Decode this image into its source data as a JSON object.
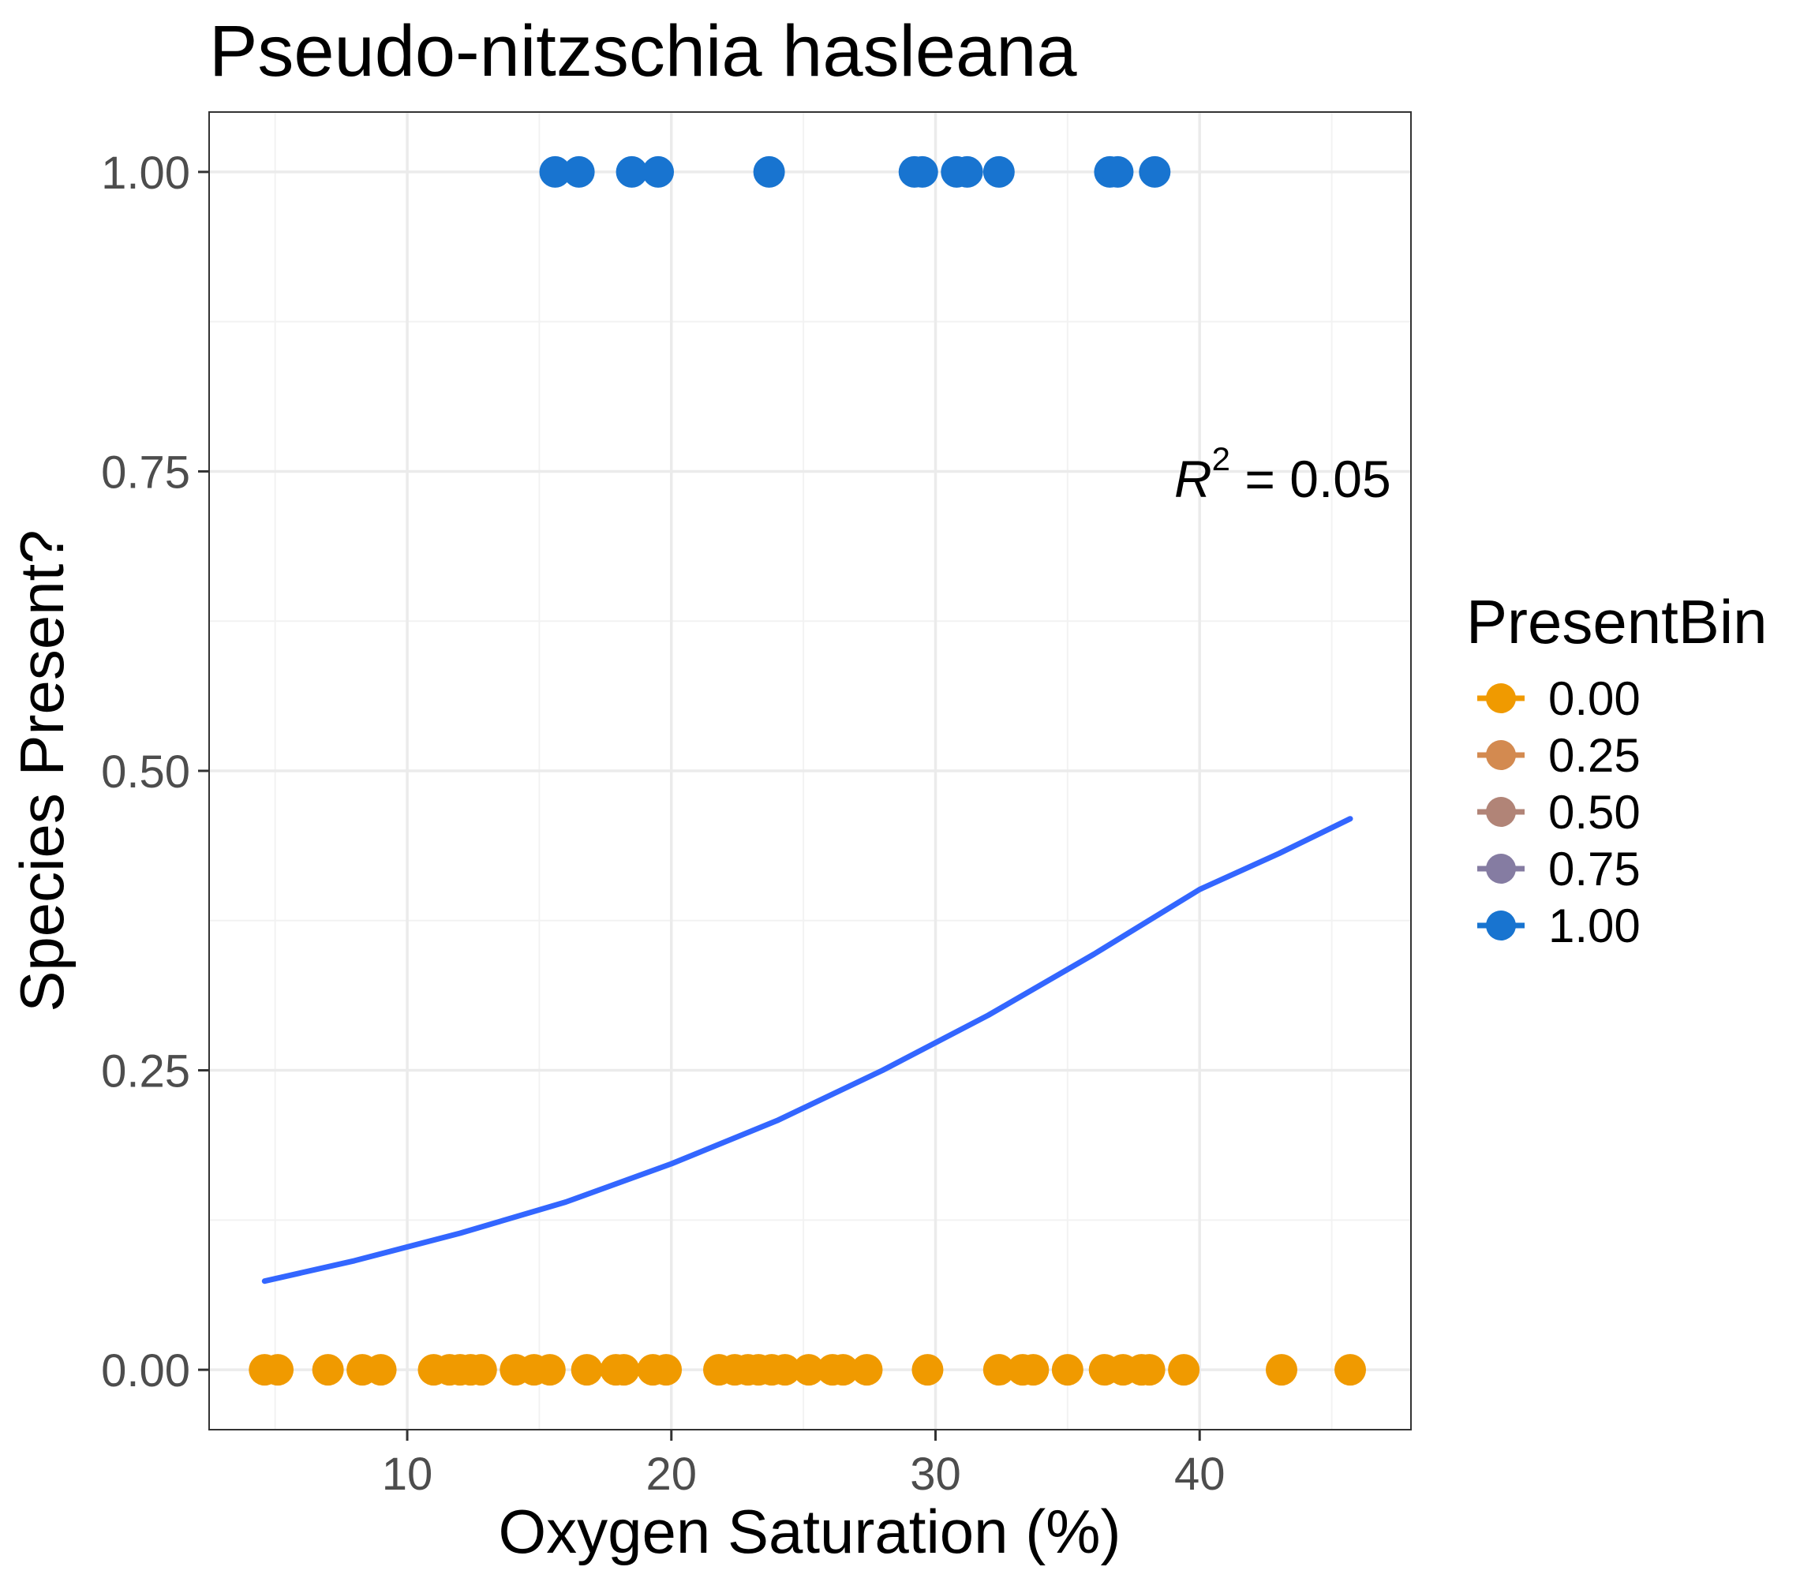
{
  "chart_data": {
    "type": "scatter",
    "title": "Pseudo-nitzschia hasleana",
    "xlabel": "Oxygen Saturation (%)",
    "ylabel": "Species Present?",
    "xlim": [
      2.5,
      48.0
    ],
    "ylim": [
      -0.05,
      1.05
    ],
    "x_ticks": [
      10,
      20,
      30,
      40
    ],
    "x_tick_labels": [
      "10",
      "20",
      "30",
      "40"
    ],
    "y_ticks": [
      0,
      0.25,
      0.5,
      0.75,
      1.0
    ],
    "y_tick_labels": [
      "0.00",
      "0.25",
      "0.50",
      "0.75",
      "1.00"
    ],
    "grid": true,
    "legend": {
      "title": "PresentBin",
      "position": "right",
      "entries": [
        {
          "label": "0.00",
          "color": "#F09A00"
        },
        {
          "label": "0.25",
          "color": "#D38A50"
        },
        {
          "label": "0.50",
          "color": "#B18477"
        },
        {
          "label": "0.75",
          "color": "#857CA2"
        },
        {
          "label": "1.00",
          "color": "#1874D0"
        }
      ]
    },
    "annotation": {
      "r_symbol": "R",
      "r_exponent": "2",
      "text": " = 0.05"
    },
    "series": [
      {
        "value": 1.0,
        "color": "#1874D0",
        "x": [
          15.6,
          16.5,
          18.5,
          19.5,
          23.7,
          29.2,
          29.5,
          30.8,
          31.2,
          32.4,
          36.6,
          36.9,
          38.3
        ]
      },
      {
        "value": 0.0,
        "color": "#F09A00",
        "x": [
          4.6,
          5.1,
          7.0,
          8.3,
          9.0,
          11.0,
          11.6,
          12.0,
          12.4,
          12.8,
          14.1,
          14.8,
          15.4,
          16.8,
          17.9,
          18.2,
          19.3,
          19.8,
          21.8,
          22.4,
          22.9,
          23.3,
          23.8,
          24.3,
          25.2,
          26.1,
          26.5,
          27.4,
          29.7,
          32.4,
          33.3,
          33.7,
          35.0,
          36.4,
          37.1,
          37.8,
          38.1,
          39.4,
          43.1,
          45.7
        ]
      }
    ],
    "fit_line": {
      "color": "#3366FF",
      "x": [
        4.6,
        8,
        12,
        16,
        20,
        24,
        28,
        32,
        36,
        40,
        43,
        45.7
      ],
      "y": [
        0.074,
        0.091,
        0.114,
        0.14,
        0.172,
        0.208,
        0.25,
        0.296,
        0.347,
        0.401,
        0.431,
        0.46
      ]
    }
  }
}
